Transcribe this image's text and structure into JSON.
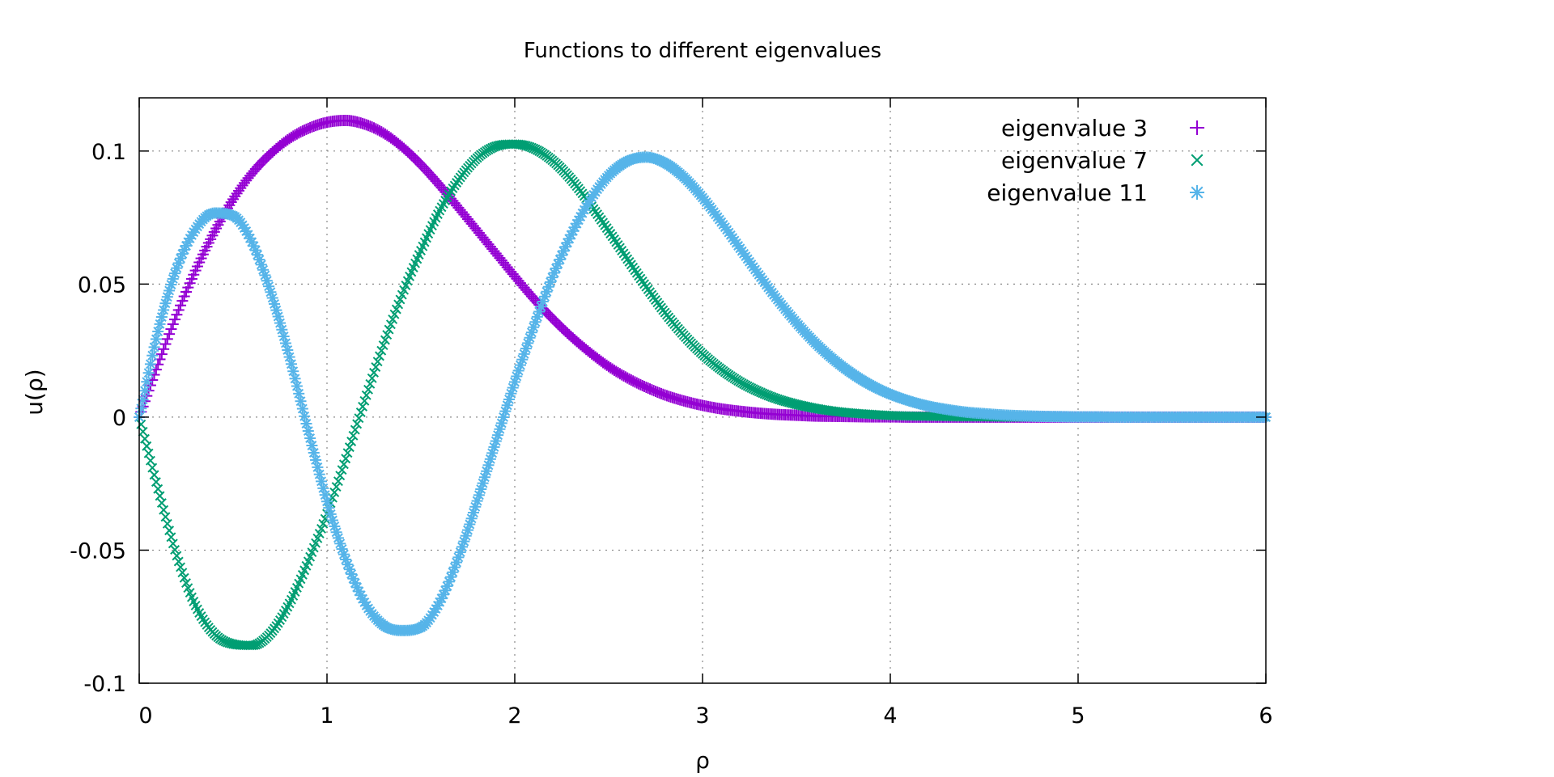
{
  "chart_data": {
    "type": "scatter",
    "title": "Functions to different eigenvalues",
    "xlabel": "ρ",
    "ylabel": "u(ρ)",
    "xlim": [
      0,
      6
    ],
    "ylim": [
      -0.1,
      0.12
    ],
    "x_ticks": [
      0,
      1,
      2,
      3,
      4,
      5,
      6
    ],
    "x_tick_labels": [
      "0",
      "1",
      "2",
      "3",
      "4",
      "5",
      "6"
    ],
    "y_ticks": [
      -0.1,
      -0.05,
      0,
      0.05,
      0.1
    ],
    "y_tick_labels": [
      "-0.1",
      "-0.05",
      "0",
      "0.05",
      "0.1"
    ],
    "grid": true,
    "legend_position": "top-right",
    "x": [
      0,
      0.1,
      0.2,
      0.3,
      0.4,
      0.5,
      0.6,
      0.7,
      0.8,
      0.9,
      1.0,
      1.1,
      1.2,
      1.3,
      1.4,
      1.5,
      1.6,
      1.7,
      1.8,
      1.9,
      2.0,
      2.1,
      2.2,
      2.3,
      2.4,
      2.5,
      2.6,
      2.7,
      2.8,
      2.9,
      3.0,
      3.1,
      3.2,
      3.3,
      3.4,
      3.5,
      3.6,
      3.7,
      3.8,
      3.9,
      4.0,
      4.1,
      4.2,
      4.3,
      4.4,
      4.5,
      4.6,
      4.7,
      4.8,
      4.9,
      5.0,
      5.1,
      5.2,
      5.3,
      5.4,
      5.5,
      5.6,
      5.7,
      5.8,
      5.9,
      6.0
    ],
    "series": [
      {
        "name": "eigenvalue 3",
        "color": "#9400d3",
        "marker": "plus",
        "values": [
          0,
          0.0198,
          0.0385,
          0.0551,
          0.0696,
          0.0819,
          0.0916,
          0.099,
          0.1047,
          0.1085,
          0.1108,
          0.1115,
          0.1101,
          0.1068,
          0.1016,
          0.0949,
          0.0871,
          0.0787,
          0.0701,
          0.0615,
          0.0529,
          0.0446,
          0.0371,
          0.0303,
          0.0243,
          0.019,
          0.0147,
          0.0112,
          0.0083,
          0.0061,
          0.0044,
          0.0031,
          0.0022,
          0.0015,
          0.001,
          0.0007,
          0.0004,
          0.0003,
          0.0002,
          0.0001,
          0.0001,
          0.0,
          0.0,
          0.0,
          0.0,
          0,
          0,
          0,
          0,
          0,
          0,
          0,
          0,
          0,
          0,
          0,
          0,
          0,
          0,
          0,
          0
        ]
      },
      {
        "name": "eigenvalue 7",
        "color": "#009e73",
        "marker": "cross",
        "values": [
          0,
          -0.027,
          -0.0521,
          -0.0708,
          -0.0815,
          -0.0853,
          -0.0858,
          -0.0812,
          -0.07,
          -0.0542,
          -0.0363,
          -0.0156,
          0.0061,
          0.027,
          0.046,
          0.0626,
          0.0776,
          0.0891,
          0.0974,
          0.1018,
          0.1026,
          0.101,
          0.0965,
          0.0894,
          0.0802,
          0.07,
          0.0594,
          0.049,
          0.0393,
          0.0308,
          0.0237,
          0.0179,
          0.0132,
          0.0096,
          0.0068,
          0.0048,
          0.0033,
          0.0022,
          0.0015,
          0.001,
          0.0006,
          0.0004,
          0.0003,
          0.0002,
          0.0001,
          0.0001,
          0,
          0,
          0,
          0,
          0,
          0,
          0,
          0,
          0,
          0,
          0,
          0,
          0,
          0,
          0
        ]
      },
      {
        "name": "eigenvalue 11",
        "color": "#56b4e9",
        "marker": "star",
        "values": [
          0,
          0.0322,
          0.056,
          0.0706,
          0.0767,
          0.0757,
          0.0658,
          0.047,
          0.0226,
          -0.0052,
          -0.0317,
          -0.0535,
          -0.0696,
          -0.0782,
          -0.0802,
          -0.079,
          -0.0695,
          -0.0527,
          -0.0315,
          -0.009,
          0.0132,
          0.0338,
          0.0525,
          0.0685,
          0.0814,
          0.0908,
          0.0962,
          0.0977,
          0.0955,
          0.0902,
          0.0825,
          0.0733,
          0.0634,
          0.0535,
          0.0441,
          0.0355,
          0.0279,
          0.0215,
          0.0162,
          0.0119,
          0.0086,
          0.0061,
          0.0042,
          0.0029,
          0.0019,
          0.0013,
          0.0008,
          0.0005,
          0.0003,
          0.0002,
          0.0001,
          0.0001,
          0,
          0,
          0,
          0,
          0,
          0,
          0,
          0,
          0
        ]
      }
    ]
  }
}
